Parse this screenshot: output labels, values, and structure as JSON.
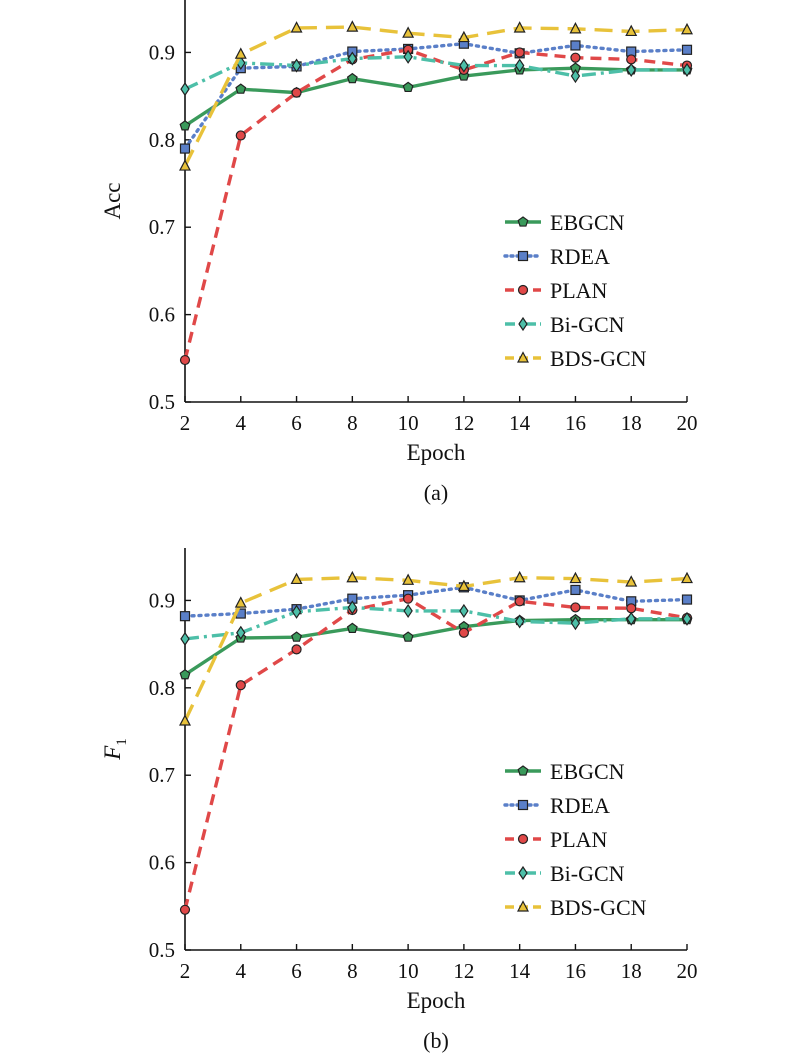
{
  "chart_data": [
    {
      "type": "line",
      "caption": "(a)",
      "xlabel": "Epoch",
      "ylabel": "Acc",
      "ylabel_sub": "",
      "x": [
        2,
        4,
        6,
        8,
        10,
        12,
        14,
        16,
        18,
        20
      ],
      "xlim": [
        2,
        20
      ],
      "ylim": [
        0.5,
        0.96
      ],
      "xticks": [
        2,
        4,
        6,
        8,
        10,
        12,
        14,
        16,
        18,
        20
      ],
      "yticks": [
        0.5,
        0.6,
        0.7,
        0.8,
        0.9
      ],
      "grid": false,
      "legend_position": "bottom-right",
      "series": [
        {
          "name": "EBGCN",
          "color": "#3a9a5b",
          "dash": "solid",
          "marker": "pentagon",
          "values": [
            0.816,
            0.858,
            0.854,
            0.87,
            0.86,
            0.873,
            0.88,
            0.882,
            0.88,
            0.88
          ]
        },
        {
          "name": "RDEA",
          "color": "#5a7fc8",
          "dash": "dotted",
          "marker": "square",
          "values": [
            0.79,
            0.882,
            0.884,
            0.901,
            0.904,
            0.91,
            0.899,
            0.908,
            0.901,
            0.903
          ]
        },
        {
          "name": "PLAN",
          "color": "#e04848",
          "dash": "dashed",
          "marker": "circle",
          "values": [
            0.548,
            0.805,
            0.854,
            0.892,
            0.903,
            0.88,
            0.9,
            0.894,
            0.892,
            0.885
          ]
        },
        {
          "name": "Bi-GCN",
          "color": "#4dbfa8",
          "dash": "dashdot",
          "marker": "diamond",
          "values": [
            0.858,
            0.888,
            0.885,
            0.893,
            0.895,
            0.885,
            0.885,
            0.873,
            0.88,
            0.88
          ]
        },
        {
          "name": "BDS-GCN",
          "color": "#e8c23a",
          "dash": "longdash",
          "marker": "triangle",
          "values": [
            0.77,
            0.898,
            0.928,
            0.929,
            0.922,
            0.917,
            0.928,
            0.927,
            0.924,
            0.926
          ]
        }
      ]
    },
    {
      "type": "line",
      "caption": "(b)",
      "xlabel": "Epoch",
      "ylabel": "F",
      "ylabel_sub": "1",
      "x": [
        2,
        4,
        6,
        8,
        10,
        12,
        14,
        16,
        18,
        20
      ],
      "xlim": [
        2,
        20
      ],
      "ylim": [
        0.5,
        0.96
      ],
      "xticks": [
        2,
        4,
        6,
        8,
        10,
        12,
        14,
        16,
        18,
        20
      ],
      "yticks": [
        0.5,
        0.6,
        0.7,
        0.8,
        0.9
      ],
      "grid": false,
      "legend_position": "bottom-right",
      "series": [
        {
          "name": "EBGCN",
          "color": "#3a9a5b",
          "dash": "solid",
          "marker": "pentagon",
          "values": [
            0.815,
            0.857,
            0.858,
            0.868,
            0.858,
            0.87,
            0.877,
            0.878,
            0.878,
            0.878
          ]
        },
        {
          "name": "RDEA",
          "color": "#5a7fc8",
          "dash": "dotted",
          "marker": "square",
          "values": [
            0.882,
            0.885,
            0.89,
            0.902,
            0.906,
            0.915,
            0.9,
            0.912,
            0.899,
            0.901
          ]
        },
        {
          "name": "PLAN",
          "color": "#e04848",
          "dash": "dashed",
          "marker": "circle",
          "values": [
            0.546,
            0.803,
            0.844,
            0.889,
            0.902,
            0.863,
            0.899,
            0.892,
            0.891,
            0.88
          ]
        },
        {
          "name": "Bi-GCN",
          "color": "#4dbfa8",
          "dash": "dashdot",
          "marker": "diamond",
          "values": [
            0.856,
            0.863,
            0.887,
            0.892,
            0.888,
            0.888,
            0.876,
            0.874,
            0.879,
            0.879
          ]
        },
        {
          "name": "BDS-GCN",
          "color": "#e8c23a",
          "dash": "longdash",
          "marker": "triangle",
          "values": [
            0.762,
            0.897,
            0.924,
            0.926,
            0.923,
            0.916,
            0.926,
            0.925,
            0.921,
            0.925
          ]
        }
      ]
    }
  ]
}
